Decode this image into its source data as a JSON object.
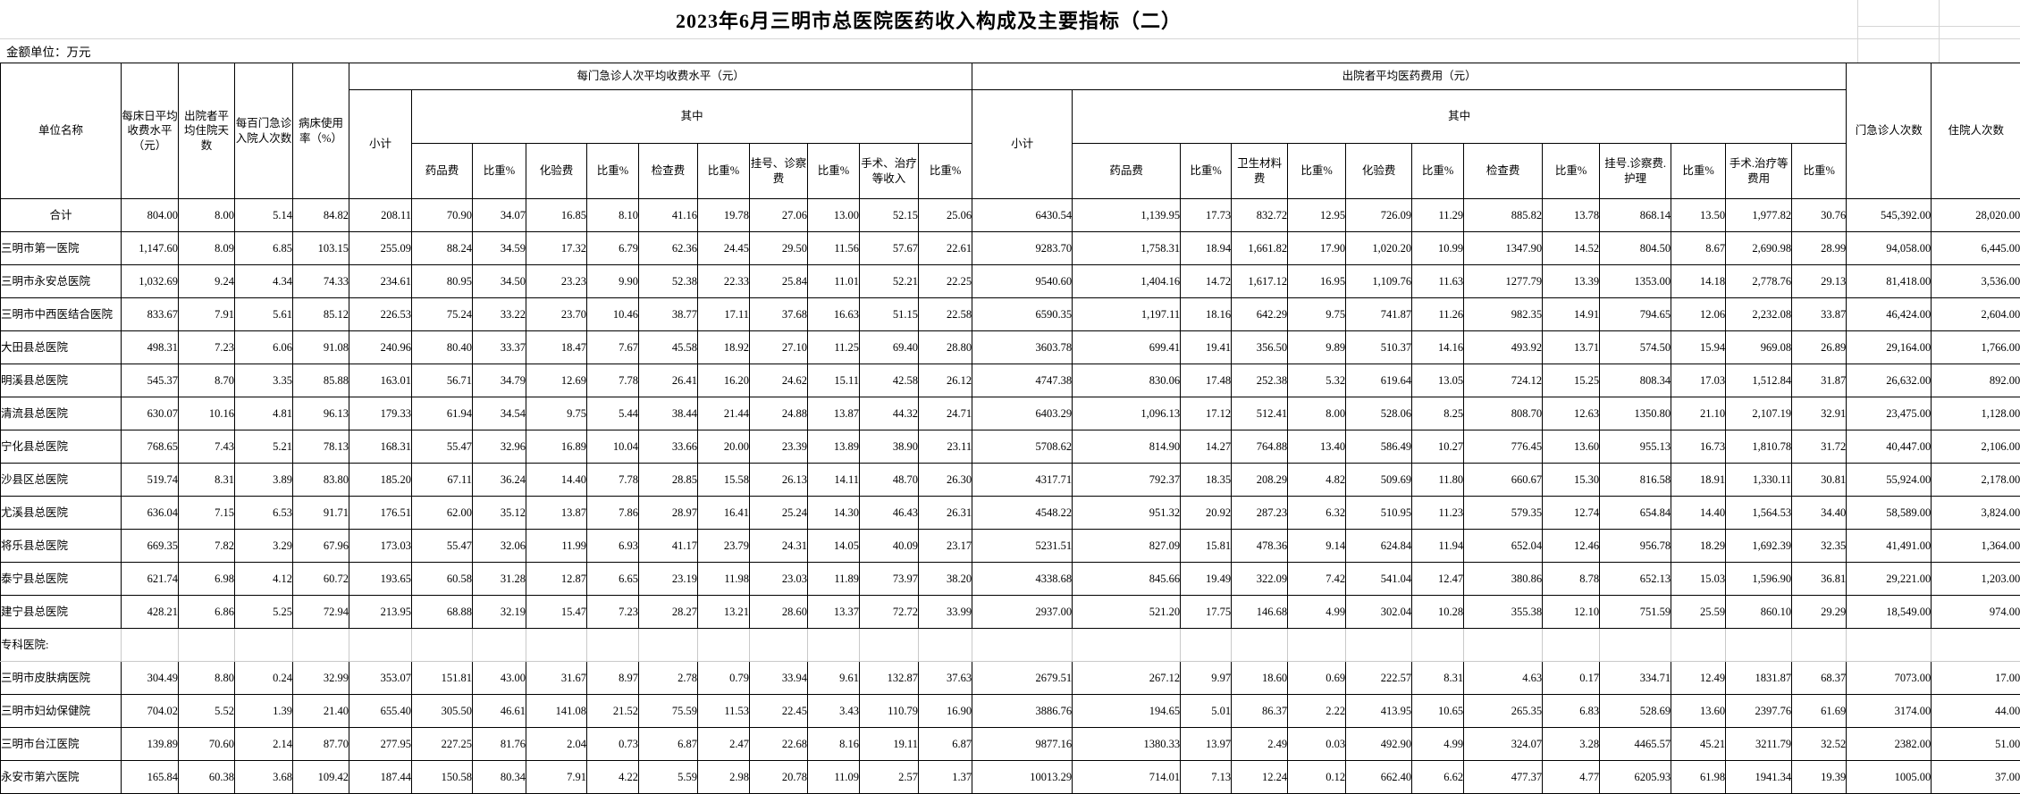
{
  "title": "2023年6月三明市总医院医药收入构成及主要指标（二）",
  "unit_note": "金额单位：万元",
  "header": {
    "unit_name": "单位名称",
    "metrics": [
      "每床日平均收费水平（元）",
      "出院者平均住院天数",
      "每百门急诊入院人次数",
      "病床使用率（%）"
    ],
    "group1": {
      "title": "每门急诊人次平均收费水平（元）",
      "subtotal": "小计",
      "among": "其中",
      "cols": [
        "药品费",
        "比重%",
        "化验费",
        "比重%",
        "检查费",
        "比重%",
        "挂号、诊察费",
        "比重%",
        "手术、治疗等收入",
        "比重%"
      ]
    },
    "group2": {
      "title": "出院者平均医药费用（元）",
      "subtotal": "小计",
      "among": "其中",
      "cols": [
        "药品费",
        "比重%",
        "卫生材料费",
        "比重%",
        "化验费",
        "比重%",
        "检查费",
        "比重%",
        "挂号.诊察费.护理",
        "比重%",
        "手术.治疗等费用",
        "比重%"
      ]
    },
    "right": [
      "门急诊人次数",
      "住院人次数"
    ]
  },
  "rows": [
    {
      "name": "合计",
      "type": "total",
      "values": [
        "804.00",
        "8.00",
        "5.14",
        "84.82",
        "208.11",
        "70.90",
        "34.07",
        "16.85",
        "8.10",
        "41.16",
        "19.78",
        "27.06",
        "13.00",
        "52.15",
        "25.06",
        "6430.54",
        "1,139.95",
        "17.73",
        "832.72",
        "12.95",
        "726.09",
        "11.29",
        "885.82",
        "13.78",
        "868.14",
        "13.50",
        "1,977.82",
        "30.76",
        "545,392.00",
        "28,020.00"
      ]
    },
    {
      "name": "三明市第一医院",
      "type": "hospital",
      "values": [
        "1,147.60",
        "8.09",
        "6.85",
        "103.15",
        "255.09",
        "88.24",
        "34.59",
        "17.32",
        "6.79",
        "62.36",
        "24.45",
        "29.50",
        "11.56",
        "57.67",
        "22.61",
        "9283.70",
        "1,758.31",
        "18.94",
        "1,661.82",
        "17.90",
        "1,020.20",
        "10.99",
        "1347.90",
        "14.52",
        "804.50",
        "8.67",
        "2,690.98",
        "28.99",
        "94,058.00",
        "6,445.00"
      ]
    },
    {
      "name": "三明市永安总医院",
      "type": "hospital",
      "values": [
        "1,032.69",
        "9.24",
        "4.34",
        "74.33",
        "234.61",
        "80.95",
        "34.50",
        "23.23",
        "9.90",
        "52.38",
        "22.33",
        "25.84",
        "11.01",
        "52.21",
        "22.25",
        "9540.60",
        "1,404.16",
        "14.72",
        "1,617.12",
        "16.95",
        "1,109.76",
        "11.63",
        "1277.79",
        "13.39",
        "1353.00",
        "14.18",
        "2,778.76",
        "29.13",
        "81,418.00",
        "3,536.00"
      ]
    },
    {
      "name": "三明市中西医结合医院",
      "type": "hospital",
      "values": [
        "833.67",
        "7.91",
        "5.61",
        "85.12",
        "226.53",
        "75.24",
        "33.22",
        "23.70",
        "10.46",
        "38.77",
        "17.11",
        "37.68",
        "16.63",
        "51.15",
        "22.58",
        "6590.35",
        "1,197.11",
        "18.16",
        "642.29",
        "9.75",
        "741.87",
        "11.26",
        "982.35",
        "14.91",
        "794.65",
        "12.06",
        "2,232.08",
        "33.87",
        "46,424.00",
        "2,604.00"
      ]
    },
    {
      "name": "大田县总医院",
      "type": "hospital",
      "values": [
        "498.31",
        "7.23",
        "6.06",
        "91.08",
        "240.96",
        "80.40",
        "33.37",
        "18.47",
        "7.67",
        "45.58",
        "18.92",
        "27.10",
        "11.25",
        "69.40",
        "28.80",
        "3603.78",
        "699.41",
        "19.41",
        "356.50",
        "9.89",
        "510.37",
        "14.16",
        "493.92",
        "13.71",
        "574.50",
        "15.94",
        "969.08",
        "26.89",
        "29,164.00",
        "1,766.00"
      ]
    },
    {
      "name": "明溪县总医院",
      "type": "hospital",
      "values": [
        "545.37",
        "8.70",
        "3.35",
        "85.88",
        "163.01",
        "56.71",
        "34.79",
        "12.69",
        "7.78",
        "26.41",
        "16.20",
        "24.62",
        "15.11",
        "42.58",
        "26.12",
        "4747.38",
        "830.06",
        "17.48",
        "252.38",
        "5.32",
        "619.64",
        "13.05",
        "724.12",
        "15.25",
        "808.34",
        "17.03",
        "1,512.84",
        "31.87",
        "26,632.00",
        "892.00"
      ]
    },
    {
      "name": "清流县总医院",
      "type": "hospital",
      "values": [
        "630.07",
        "10.16",
        "4.81",
        "96.13",
        "179.33",
        "61.94",
        "34.54",
        "9.75",
        "5.44",
        "38.44",
        "21.44",
        "24.88",
        "13.87",
        "44.32",
        "24.71",
        "6403.29",
        "1,096.13",
        "17.12",
        "512.41",
        "8.00",
        "528.06",
        "8.25",
        "808.70",
        "12.63",
        "1350.80",
        "21.10",
        "2,107.19",
        "32.91",
        "23,475.00",
        "1,128.00"
      ]
    },
    {
      "name": "宁化县总医院",
      "type": "hospital",
      "values": [
        "768.65",
        "7.43",
        "5.21",
        "78.13",
        "168.31",
        "55.47",
        "32.96",
        "16.89",
        "10.04",
        "33.66",
        "20.00",
        "23.39",
        "13.89",
        "38.90",
        "23.11",
        "5708.62",
        "814.90",
        "14.27",
        "764.88",
        "13.40",
        "586.49",
        "10.27",
        "776.45",
        "13.60",
        "955.13",
        "16.73",
        "1,810.78",
        "31.72",
        "40,447.00",
        "2,106.00"
      ]
    },
    {
      "name": "沙县区总医院",
      "type": "hospital",
      "values": [
        "519.74",
        "8.31",
        "3.89",
        "83.80",
        "185.20",
        "67.11",
        "36.24",
        "14.40",
        "7.78",
        "28.85",
        "15.58",
        "26.13",
        "14.11",
        "48.70",
        "26.30",
        "4317.71",
        "792.37",
        "18.35",
        "208.29",
        "4.82",
        "509.69",
        "11.80",
        "660.67",
        "15.30",
        "816.58",
        "18.91",
        "1,330.11",
        "30.81",
        "55,924.00",
        "2,178.00"
      ]
    },
    {
      "name": "尤溪县总医院",
      "type": "hospital",
      "values": [
        "636.04",
        "7.15",
        "6.53",
        "91.71",
        "176.51",
        "62.00",
        "35.12",
        "13.87",
        "7.86",
        "28.97",
        "16.41",
        "25.24",
        "14.30",
        "46.43",
        "26.31",
        "4548.22",
        "951.32",
        "20.92",
        "287.23",
        "6.32",
        "510.95",
        "11.23",
        "579.35",
        "12.74",
        "654.84",
        "14.40",
        "1,564.53",
        "34.40",
        "58,589.00",
        "3,824.00"
      ]
    },
    {
      "name": "将乐县总医院",
      "type": "hospital",
      "values": [
        "669.35",
        "7.82",
        "3.29",
        "67.96",
        "173.03",
        "55.47",
        "32.06",
        "11.99",
        "6.93",
        "41.17",
        "23.79",
        "24.31",
        "14.05",
        "40.09",
        "23.17",
        "5231.51",
        "827.09",
        "15.81",
        "478.36",
        "9.14",
        "624.84",
        "11.94",
        "652.04",
        "12.46",
        "956.78",
        "18.29",
        "1,692.39",
        "32.35",
        "41,491.00",
        "1,364.00"
      ]
    },
    {
      "name": "泰宁县总医院",
      "type": "hospital",
      "values": [
        "621.74",
        "6.98",
        "4.12",
        "60.72",
        "193.65",
        "60.58",
        "31.28",
        "12.87",
        "6.65",
        "23.19",
        "11.98",
        "23.03",
        "11.89",
        "73.97",
        "38.20",
        "4338.68",
        "845.66",
        "19.49",
        "322.09",
        "7.42",
        "541.04",
        "12.47",
        "380.86",
        "8.78",
        "652.13",
        "15.03",
        "1,596.90",
        "36.81",
        "29,221.00",
        "1,203.00"
      ]
    },
    {
      "name": "建宁县总医院",
      "type": "hospital",
      "values": [
        "428.21",
        "6.86",
        "5.25",
        "72.94",
        "213.95",
        "68.88",
        "32.19",
        "15.47",
        "7.23",
        "28.27",
        "13.21",
        "28.60",
        "13.37",
        "72.72",
        "33.99",
        "2937.00",
        "521.20",
        "17.75",
        "146.68",
        "4.99",
        "302.04",
        "10.28",
        "355.38",
        "12.10",
        "751.59",
        "25.59",
        "860.10",
        "29.29",
        "18,549.00",
        "974.00"
      ]
    },
    {
      "name": "专科医院:",
      "type": "section",
      "values": []
    },
    {
      "name": "三明市皮肤病医院",
      "type": "hospital",
      "values": [
        "304.49",
        "8.80",
        "0.24",
        "32.99",
        "353.07",
        "151.81",
        "43.00",
        "31.67",
        "8.97",
        "2.78",
        "0.79",
        "33.94",
        "9.61",
        "132.87",
        "37.63",
        "2679.51",
        "267.12",
        "9.97",
        "18.60",
        "0.69",
        "222.57",
        "8.31",
        "4.63",
        "0.17",
        "334.71",
        "12.49",
        "1831.87",
        "68.37",
        "7073.00",
        "17.00"
      ]
    },
    {
      "name": "三明市妇幼保健院",
      "type": "hospital",
      "values": [
        "704.02",
        "5.52",
        "1.39",
        "21.40",
        "655.40",
        "305.50",
        "46.61",
        "141.08",
        "21.52",
        "75.59",
        "11.53",
        "22.45",
        "3.43",
        "110.79",
        "16.90",
        "3886.76",
        "194.65",
        "5.01",
        "86.37",
        "2.22",
        "413.95",
        "10.65",
        "265.35",
        "6.83",
        "528.69",
        "13.60",
        "2397.76",
        "61.69",
        "3174.00",
        "44.00"
      ]
    },
    {
      "name": "三明市台江医院",
      "type": "hospital",
      "values": [
        "139.89",
        "70.60",
        "2.14",
        "87.70",
        "277.95",
        "227.25",
        "81.76",
        "2.04",
        "0.73",
        "6.87",
        "2.47",
        "22.68",
        "8.16",
        "19.11",
        "6.87",
        "9877.16",
        "1380.33",
        "13.97",
        "2.49",
        "0.03",
        "492.90",
        "4.99",
        "324.07",
        "3.28",
        "4465.57",
        "45.21",
        "3211.79",
        "32.52",
        "2382.00",
        "51.00"
      ]
    },
    {
      "name": "永安市第六医院",
      "type": "hospital",
      "values": [
        "165.84",
        "60.38",
        "3.68",
        "109.42",
        "187.44",
        "150.58",
        "80.34",
        "7.91",
        "4.22",
        "5.59",
        "2.98",
        "20.78",
        "11.09",
        "2.57",
        "1.37",
        "10013.29",
        "714.01",
        "7.13",
        "12.24",
        "0.12",
        "662.40",
        "6.62",
        "477.37",
        "4.77",
        "6205.93",
        "61.98",
        "1941.34",
        "19.39",
        "1005.00",
        "37.00"
      ]
    }
  ]
}
